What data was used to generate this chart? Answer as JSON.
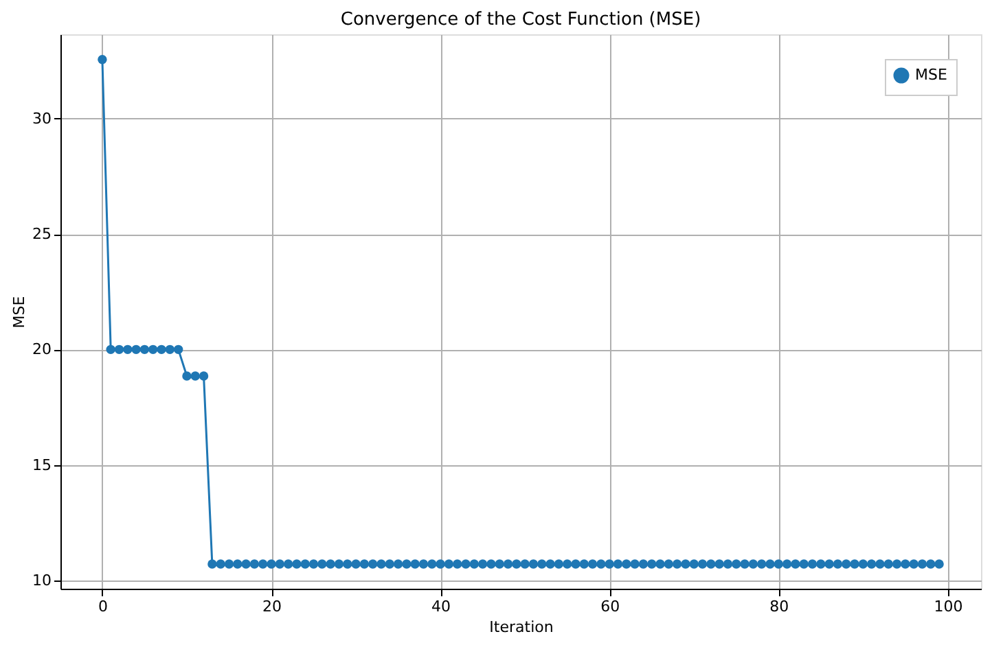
{
  "chart_data": {
    "type": "line",
    "title": "Convergence of the Cost Function (MSE)",
    "xlabel": "Iteration",
    "ylabel": "MSE",
    "x": [
      0,
      1,
      2,
      3,
      4,
      5,
      6,
      7,
      8,
      9,
      10,
      11,
      12,
      13,
      14,
      15,
      16,
      17,
      18,
      19,
      20,
      21,
      22,
      23,
      24,
      25,
      26,
      27,
      28,
      29,
      30,
      31,
      32,
      33,
      34,
      35,
      36,
      37,
      38,
      39,
      40,
      41,
      42,
      43,
      44,
      45,
      46,
      47,
      48,
      49,
      50,
      51,
      52,
      53,
      54,
      55,
      56,
      57,
      58,
      59,
      60,
      61,
      62,
      63,
      64,
      65,
      66,
      67,
      68,
      69,
      70,
      71,
      72,
      73,
      74,
      75,
      76,
      77,
      78,
      79,
      80,
      81,
      82,
      83,
      84,
      85,
      86,
      87,
      88,
      89,
      90,
      91,
      92,
      93,
      94,
      95,
      96,
      97,
      98,
      99
    ],
    "series": [
      {
        "name": "MSE",
        "color": "#1f77b4",
        "values": [
          32.56,
          20.0,
          20.0,
          20.0,
          20.0,
          20.0,
          20.0,
          20.0,
          20.0,
          20.0,
          18.85,
          18.85,
          18.85,
          10.71,
          10.71,
          10.71,
          10.71,
          10.71,
          10.71,
          10.71,
          10.71,
          10.71,
          10.71,
          10.71,
          10.71,
          10.71,
          10.71,
          10.71,
          10.71,
          10.71,
          10.71,
          10.71,
          10.71,
          10.71,
          10.71,
          10.71,
          10.71,
          10.71,
          10.71,
          10.71,
          10.71,
          10.71,
          10.71,
          10.71,
          10.71,
          10.71,
          10.71,
          10.71,
          10.71,
          10.71,
          10.71,
          10.71,
          10.71,
          10.71,
          10.71,
          10.71,
          10.71,
          10.71,
          10.71,
          10.71,
          10.71,
          10.71,
          10.71,
          10.71,
          10.71,
          10.71,
          10.71,
          10.71,
          10.71,
          10.71,
          10.71,
          10.71,
          10.71,
          10.71,
          10.71,
          10.71,
          10.71,
          10.71,
          10.71,
          10.71,
          10.71,
          10.71,
          10.71,
          10.71,
          10.71,
          10.71,
          10.71,
          10.71,
          10.71,
          10.71,
          10.71,
          10.71,
          10.71,
          10.71,
          10.71,
          10.71,
          10.71,
          10.71,
          10.71,
          10.71
        ]
      }
    ],
    "xlim": [
      -4.95,
      103.95
    ],
    "xticks": [
      0,
      20,
      40,
      60,
      80,
      100
    ],
    "ylim": [
      9.64,
      33.65
    ],
    "yticks": [
      10,
      15,
      20,
      25,
      30
    ],
    "grid": true,
    "legend": "top right",
    "marker": "circle",
    "line_style": "solid"
  }
}
